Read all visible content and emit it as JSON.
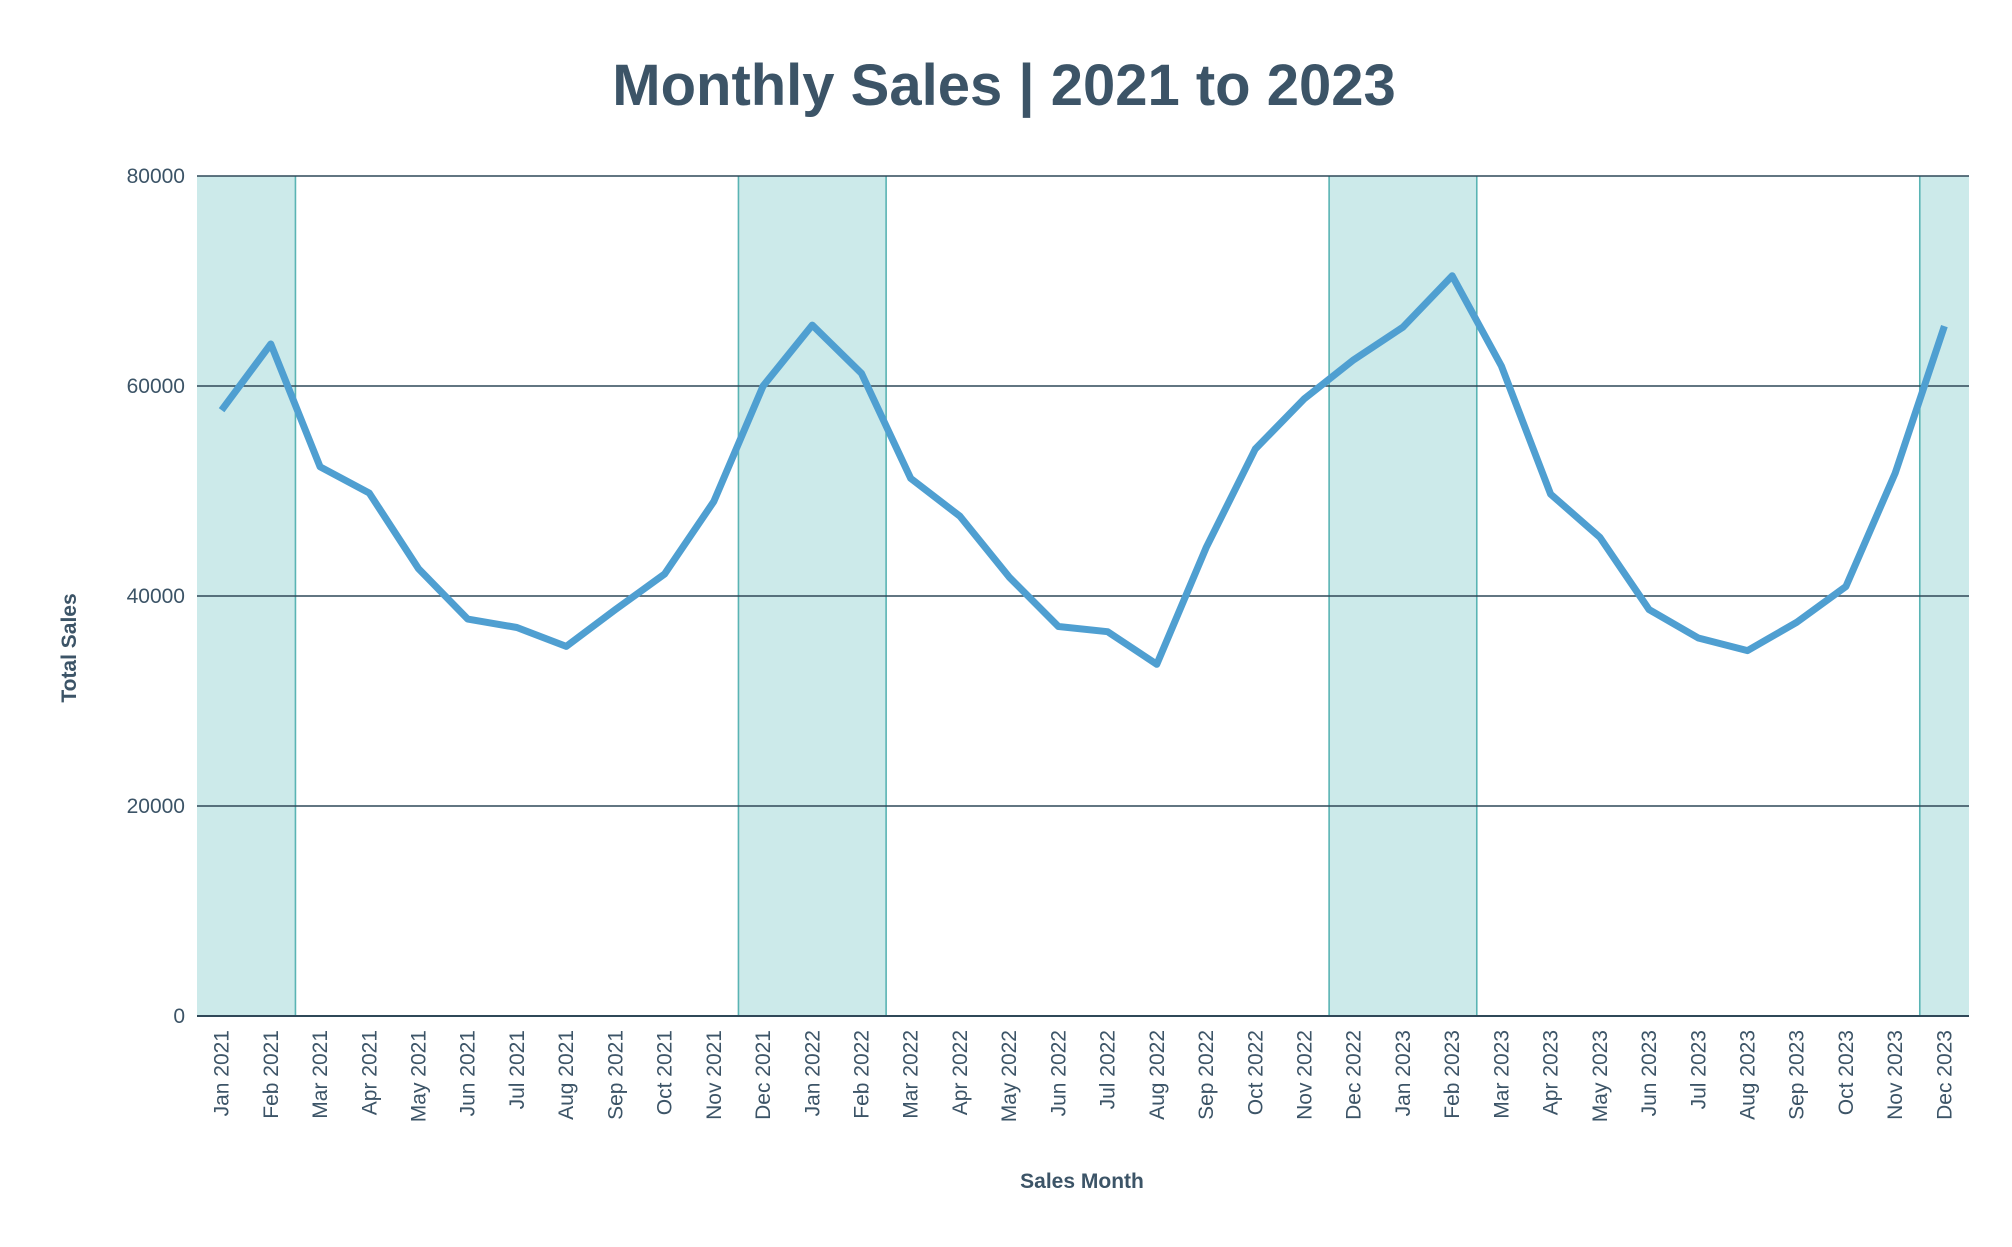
{
  "chart_data": {
    "type": "line",
    "title": "Monthly Sales | 2021 to 2023",
    "xlabel": "Sales Month",
    "ylabel": "Total Sales",
    "ylim": [
      0,
      80000
    ],
    "yticks": [
      0,
      20000,
      40000,
      60000,
      80000
    ],
    "grid": true,
    "categories": [
      "Jan 2021",
      "Feb 2021",
      "Mar 2021",
      "Apr 2021",
      "May 2021",
      "Jun 2021",
      "Jul 2021",
      "Aug 2021",
      "Sep 2021",
      "Oct 2021",
      "Nov 2021",
      "Dec 2021",
      "Jan 2022",
      "Feb 2022",
      "Mar 2022",
      "Apr 2022",
      "May 2022",
      "Jun 2022",
      "Jul 2022",
      "Aug 2022",
      "Sep 2022",
      "Oct 2022",
      "Nov 2022",
      "Dec 2022",
      "Jan 2023",
      "Feb 2023",
      "Mar 2023",
      "Apr 2023",
      "May 2023",
      "Jun 2023",
      "Jul 2023",
      "Aug 2023",
      "Sep 2023",
      "Oct 2023",
      "Nov 2023",
      "Dec 2023"
    ],
    "series": [
      {
        "values": [
          57700,
          64000,
          52300,
          49800,
          42600,
          37800,
          37000,
          35200,
          38700,
          42100,
          49000,
          60000,
          65800,
          61200,
          51200,
          47600,
          41800,
          37100,
          36600,
          33500,
          44600,
          54000,
          58800,
          62500,
          65600,
          70500,
          61900,
          49700,
          45600,
          38700,
          36000,
          34800,
          37500,
          40900,
          51700,
          65700
        ]
      }
    ],
    "shaded_ranges": [
      {
        "from": "Jan 2021",
        "to": "Feb 2021"
      },
      {
        "from": "Dec 2021",
        "to": "Feb 2022"
      },
      {
        "from": "Dec 2022",
        "to": "Feb 2023"
      },
      {
        "from": "Dec 2023",
        "to": "Dec 2023"
      }
    ],
    "colors": {
      "line": "#4f9fd1",
      "band": "#cceaea",
      "band_edge": "#5ab4b4",
      "grid": "#2f4858",
      "text": "#3c5467"
    }
  }
}
